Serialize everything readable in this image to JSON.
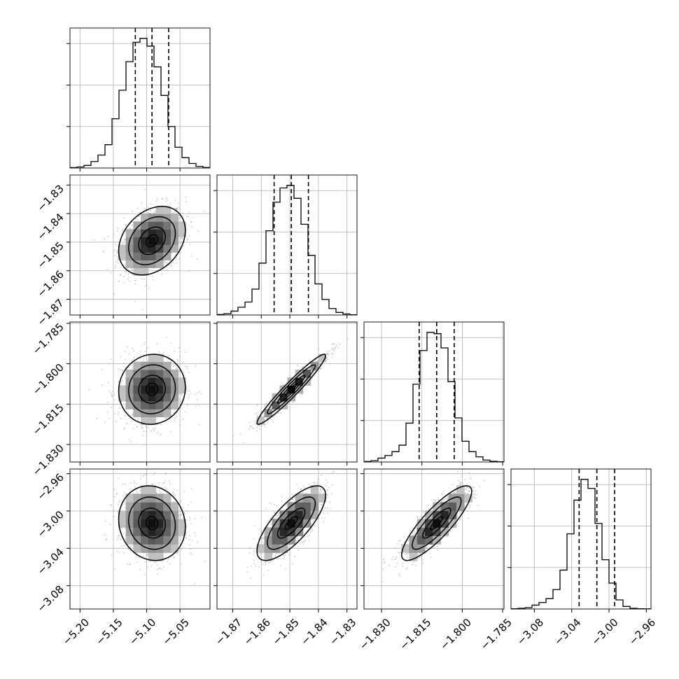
{
  "chart_data": {
    "type": "corner",
    "parameters": [
      {
        "ticks": [
          -5.2,
          -5.15,
          -5.1,
          -5.05
        ],
        "tick_labels": [
          "−5.20",
          "−5.15",
          "−5.10",
          "−5.05"
        ],
        "range": [
          -5.215,
          -5.005
        ],
        "mean": -5.092,
        "std": 0.025,
        "quantiles": [
          -5.117,
          -5.092,
          -5.067
        ]
      },
      {
        "ticks": [
          -1.87,
          -1.86,
          -1.85,
          -1.84,
          -1.83
        ],
        "tick_labels": [
          "−1.87",
          "−1.86",
          "−1.85",
          "−1.84",
          "−1.83"
        ],
        "range": [
          -1.8755,
          -1.8265
        ],
        "mean": -1.8495,
        "std": 0.006,
        "quantiles": [
          -1.8555,
          -1.8495,
          -1.8435
        ]
      },
      {
        "ticks": [
          -1.83,
          -1.815,
          -1.8,
          -1.785
        ],
        "tick_labels": [
          "−1.830",
          "−1.815",
          "−1.800",
          "−1.785"
        ],
        "range": [
          -1.8365,
          -1.7845
        ],
        "mean": -1.8095,
        "std": 0.0065,
        "quantiles": [
          -1.816,
          -1.8095,
          -1.803
        ]
      },
      {
        "ticks": [
          -3.08,
          -3.04,
          -3.0,
          -2.96
        ],
        "tick_labels": [
          "−3.08",
          "−3.04",
          "−3.00",
          "−2.96"
        ],
        "range": [
          -3.105,
          -2.955
        ],
        "mean": -3.013,
        "std": 0.02,
        "quantiles": [
          -3.032,
          -3.013,
          -2.994
        ]
      }
    ],
    "hist_counts": [
      [
        0.003,
        0.008,
        0.02,
        0.05,
        0.1,
        0.18,
        0.38,
        0.6,
        0.82,
        0.97,
        1.0,
        0.94,
        0.78,
        0.56,
        0.32,
        0.16,
        0.08,
        0.035,
        0.012,
        0.004
      ],
      [
        0.004,
        0.01,
        0.03,
        0.06,
        0.1,
        0.2,
        0.4,
        0.65,
        0.87,
        0.98,
        1.0,
        0.9,
        0.7,
        0.46,
        0.24,
        0.12,
        0.05,
        0.02,
        0.008,
        0.002
      ],
      [
        0.004,
        0.01,
        0.03,
        0.05,
        0.08,
        0.13,
        0.3,
        0.6,
        0.86,
        1.0,
        0.99,
        0.88,
        0.62,
        0.34,
        0.16,
        0.08,
        0.04,
        0.015,
        0.005,
        0.002
      ],
      [
        0.002,
        0.005,
        0.01,
        0.03,
        0.05,
        0.08,
        0.15,
        0.3,
        0.58,
        0.84,
        1.0,
        0.93,
        0.66,
        0.38,
        0.2,
        0.07,
        0.02,
        0.005,
        0.002,
        0.001
      ]
    ],
    "correlations": {
      "1-0": 0.3,
      "2-0": 0.05,
      "2-1": 0.96,
      "3-0": -0.1,
      "3-1": 0.75,
      "3-2": 0.85
    },
    "grid": true,
    "contour_levels": 3
  }
}
